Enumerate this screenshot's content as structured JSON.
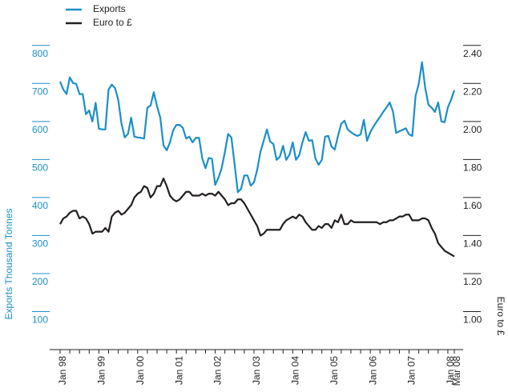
{
  "chart_data": {
    "type": "line",
    "categories": [
      "Jan 98",
      null,
      null,
      null,
      null,
      null,
      null,
      null,
      null,
      null,
      null,
      null,
      "Jan 99",
      null,
      null,
      null,
      null,
      null,
      null,
      null,
      null,
      null,
      null,
      null,
      "Jan 00",
      null,
      null,
      null,
      null,
      null,
      null,
      null,
      null,
      null,
      null,
      null,
      "Jan 01",
      null,
      null,
      null,
      null,
      null,
      null,
      null,
      null,
      null,
      null,
      null,
      "Jan 02",
      null,
      null,
      null,
      null,
      null,
      null,
      null,
      null,
      null,
      null,
      null,
      "Jan 03",
      null,
      null,
      null,
      null,
      null,
      null,
      null,
      null,
      null,
      null,
      null,
      "Jan 04",
      null,
      null,
      null,
      null,
      null,
      null,
      null,
      null,
      null,
      null,
      null,
      "Jan 05",
      null,
      null,
      null,
      null,
      null,
      null,
      null,
      null,
      null,
      null,
      null,
      "Jan 06",
      null,
      null,
      null,
      null,
      null,
      null,
      null,
      null,
      null,
      null,
      null,
      "Jan 07",
      null,
      null,
      null,
      null,
      null,
      null,
      null,
      null,
      null,
      null,
      null,
      "Jan 08",
      null,
      "Mar 08"
    ],
    "series": [
      {
        "name": "Exports",
        "color": "#1b8fc8",
        "axis": "y",
        "values": [
          705,
          684,
          672,
          716,
          701,
          699,
          672,
          672,
          619,
          629,
          600,
          649,
          581,
          579,
          579,
          684,
          697,
          688,
          657,
          594,
          558,
          567,
          610,
          560,
          558,
          557,
          555,
          636,
          642,
          677,
          640,
          610,
          537,
          524,
          545,
          577,
          591,
          591,
          583,
          555,
          560,
          545,
          557,
          557,
          503,
          477,
          504,
          502,
          433,
          452,
          477,
          520,
          567,
          558,
          488,
          414,
          423,
          458,
          458,
          431,
          440,
          473,
          520,
          549,
          579,
          547,
          541,
          499,
          507,
          536,
          499,
          513,
          545,
          499,
          511,
          545,
          572,
          549,
          551,
          503,
          486,
          499,
          560,
          562,
          534,
          526,
          562,
          594,
          602,
          579,
          572,
          566,
          562,
          566,
          604,
          549,
          572,
          587,
          600,
          612,
          625,
          637,
          650,
          627,
          570,
          574,
          578,
          582,
          566,
          562,
          667,
          699,
          756,
          688,
          644,
          636,
          625,
          650,
          600,
          598,
          637,
          657,
          682
        ]
      },
      {
        "name": "Euro to £",
        "color": "#231f20",
        "axis": "y2",
        "values": [
          1.46,
          1.49,
          1.5,
          1.52,
          1.53,
          1.53,
          1.49,
          1.5,
          1.49,
          1.46,
          1.41,
          1.42,
          1.42,
          1.42,
          1.44,
          1.42,
          1.5,
          1.52,
          1.53,
          1.51,
          1.52,
          1.54,
          1.56,
          1.6,
          1.62,
          1.63,
          1.66,
          1.65,
          1.6,
          1.62,
          1.66,
          1.66,
          1.7,
          1.66,
          1.61,
          1.59,
          1.58,
          1.59,
          1.61,
          1.63,
          1.63,
          1.61,
          1.61,
          1.61,
          1.62,
          1.61,
          1.62,
          1.62,
          1.61,
          1.63,
          1.61,
          1.59,
          1.56,
          1.57,
          1.57,
          1.59,
          1.59,
          1.57,
          1.54,
          1.51,
          1.48,
          1.45,
          1.4,
          1.41,
          1.43,
          1.43,
          1.43,
          1.43,
          1.43,
          1.46,
          1.48,
          1.49,
          1.5,
          1.49,
          1.51,
          1.5,
          1.47,
          1.45,
          1.43,
          1.43,
          1.45,
          1.44,
          1.46,
          1.46,
          1.44,
          1.48,
          1.47,
          1.51,
          1.46,
          1.46,
          1.48,
          1.47,
          1.47,
          1.47,
          1.47,
          1.47,
          1.47,
          1.47,
          1.47,
          1.46,
          1.47,
          1.47,
          1.48,
          1.48,
          1.49,
          1.5,
          1.5,
          1.51,
          1.51,
          1.48,
          1.48,
          1.48,
          1.49,
          1.49,
          1.48,
          1.44,
          1.41,
          1.36,
          1.34,
          1.32,
          1.31,
          1.3,
          1.29
        ]
      }
    ],
    "ylabel": "Exports Thousand Tonnes",
    "y2label": "Euro to £",
    "ylim": [
      0,
      850
    ],
    "yticks": [
      100,
      200,
      300,
      400,
      500,
      600,
      700,
      800
    ],
    "y2lim": [
      0.8,
      2.5
    ],
    "y2ticks": [
      {
        "value": 1.0,
        "label": "1.00"
      },
      {
        "value": 1.2,
        "label": "1.20"
      },
      {
        "value": 1.4,
        "label": "1.40"
      },
      {
        "value": 1.6,
        "label": "1.60"
      },
      {
        "value": 1.8,
        "label": "1.80"
      },
      {
        "value": 2.0,
        "label": "2.00"
      },
      {
        "value": 2.2,
        "label": "2.20"
      },
      {
        "value": 2.4,
        "label": "2.40"
      }
    ],
    "legend": "top-left"
  }
}
